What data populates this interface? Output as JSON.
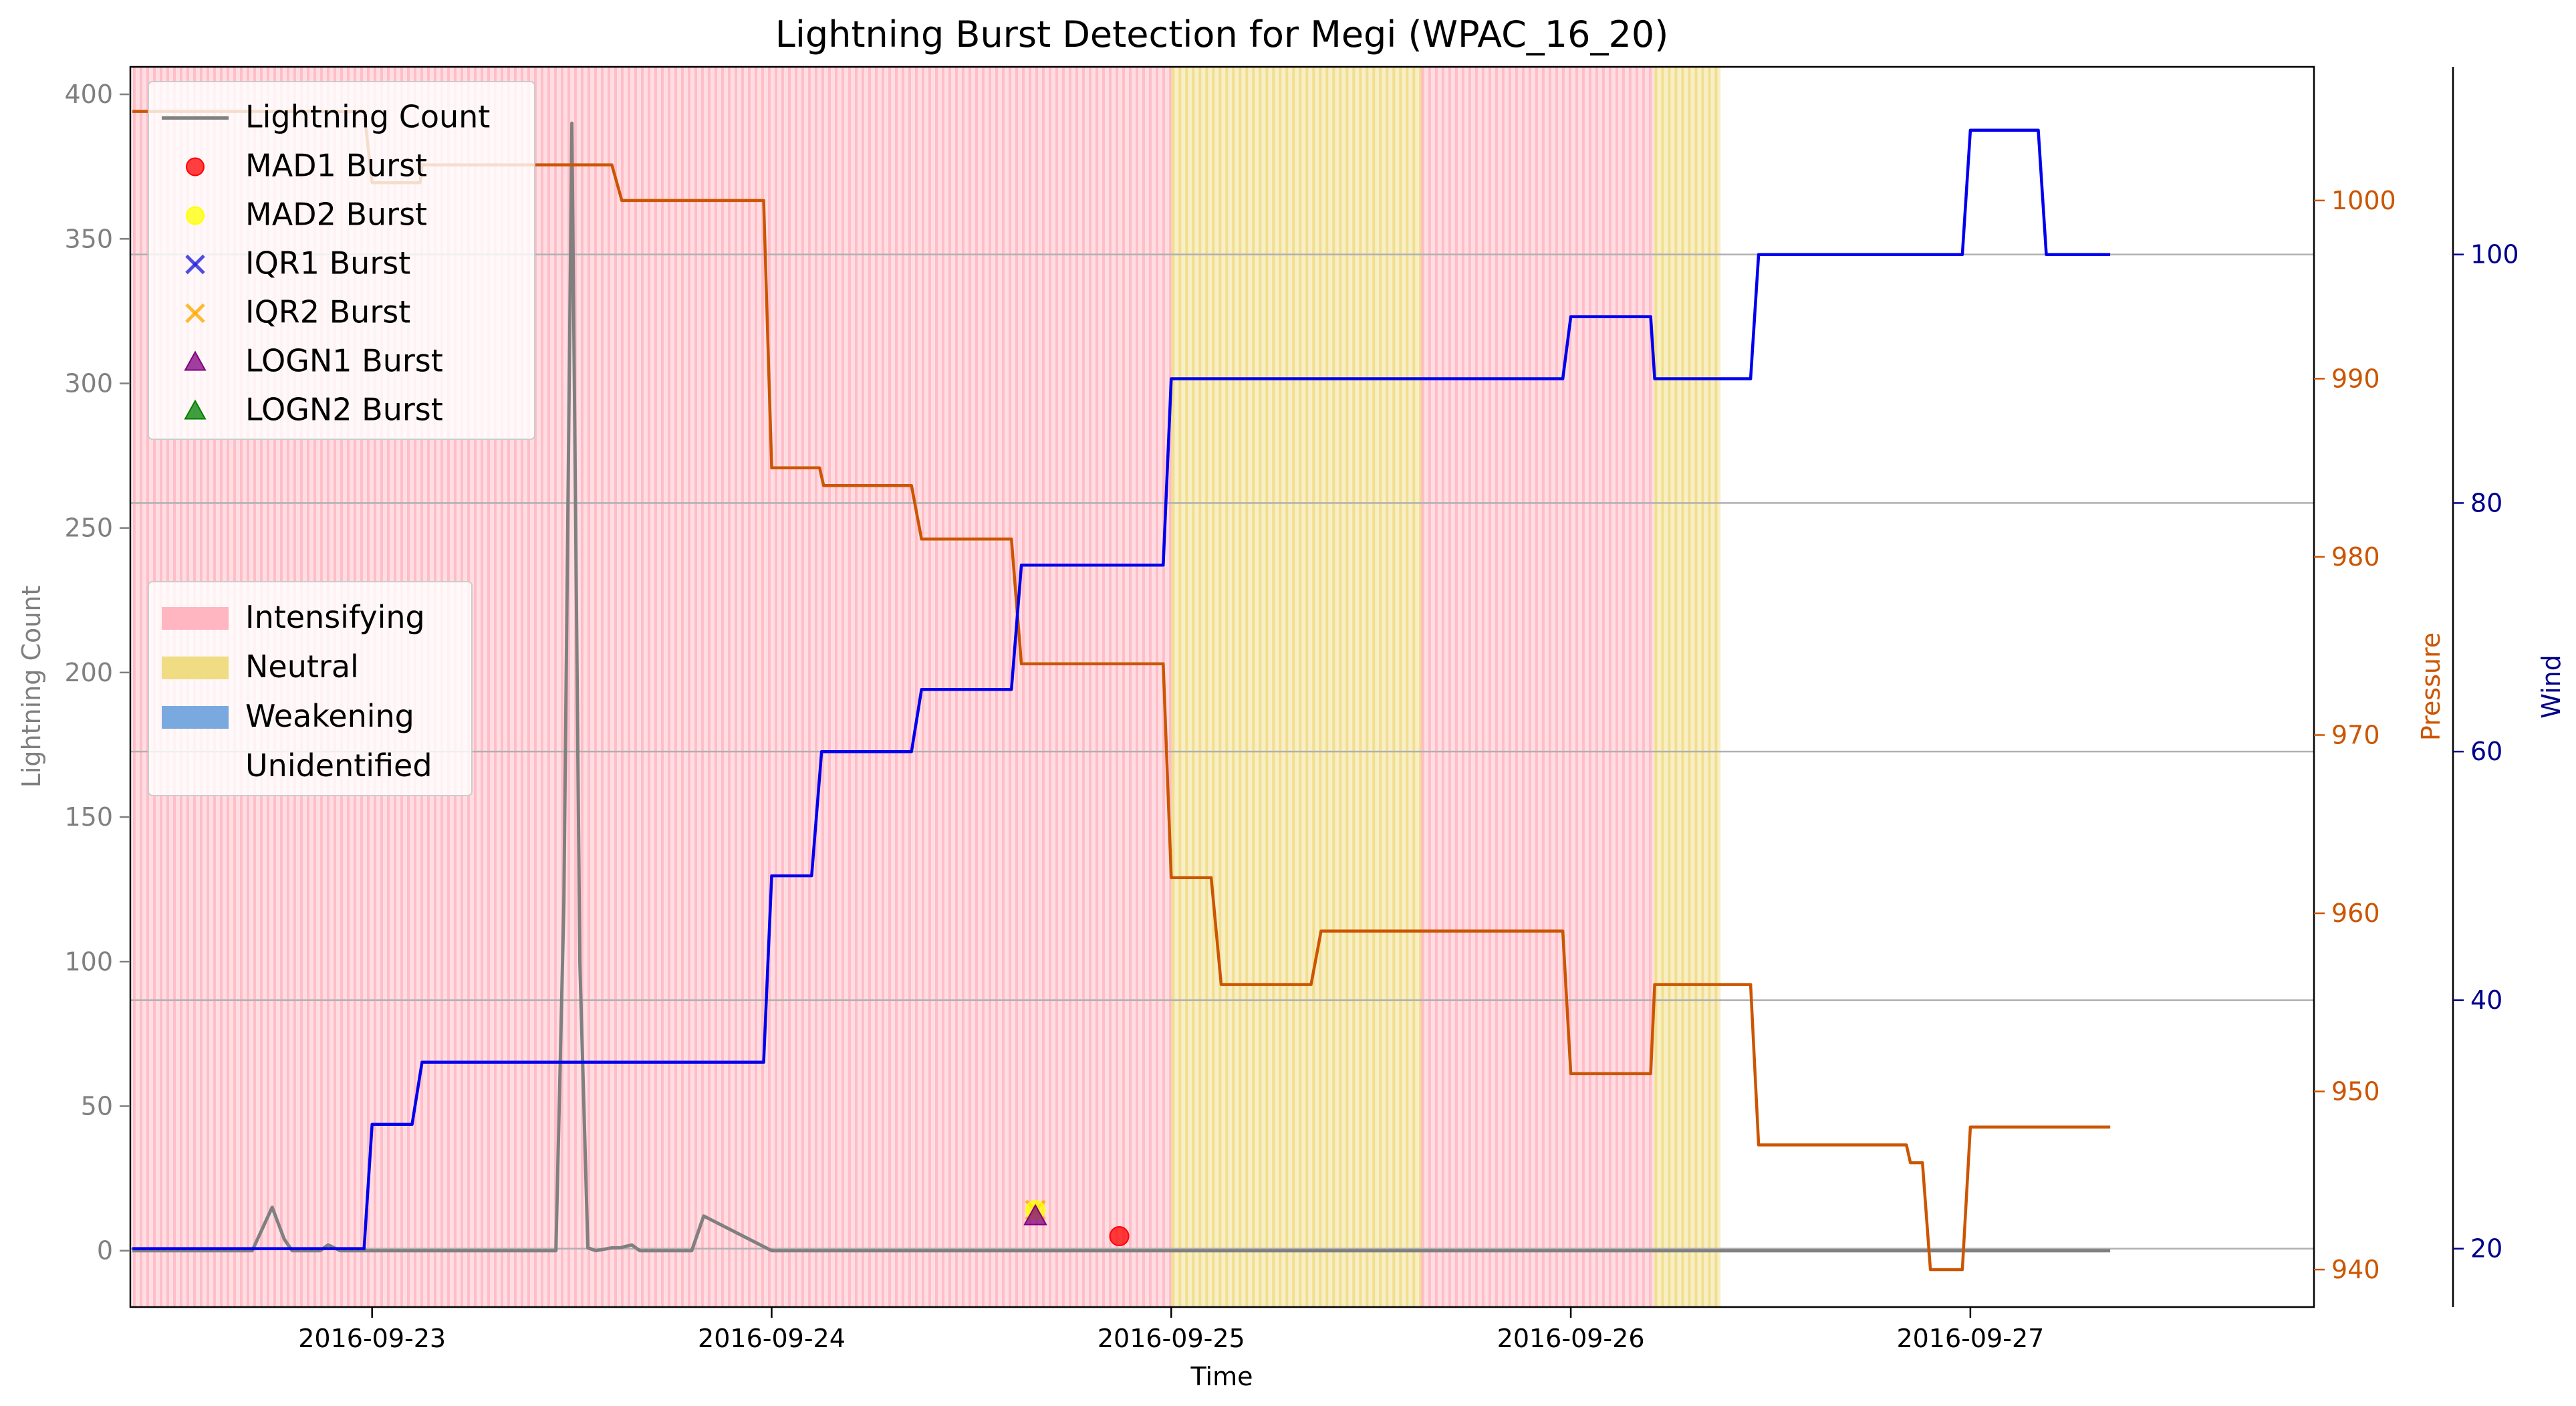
{
  "chart_data": {
    "type": "line",
    "title": "Lightning Burst Detection for Megi (WPAC_16_20)",
    "xlabel": "Time",
    "ylabel_left": "Lightning Count",
    "ylabel_pressure": "Pressure",
    "ylabel_wind": "Wind",
    "xlim": [
      -0.605,
      4.86
    ],
    "ylim_left": [
      -19.5,
      409.5
    ],
    "ylim_pressure": [
      937.9,
      1007.5
    ],
    "ylim_wind": [
      15.3,
      115.1
    ],
    "x_ticks": [
      0,
      1,
      2,
      3,
      4
    ],
    "x_tick_labels": [
      "2016-09-23",
      "2016-09-24",
      "2016-09-25",
      "2016-09-26",
      "2016-09-27"
    ],
    "left_ticks": [
      0,
      50,
      100,
      150,
      200,
      250,
      300,
      350,
      400
    ],
    "pressure_ticks": [
      940,
      950,
      960,
      970,
      980,
      990,
      1000
    ],
    "wind_ticks": [
      20,
      40,
      60,
      80,
      100
    ],
    "wind_gridlines": true,
    "colors": {
      "lightning": "#808080",
      "pressure": "#cc5500",
      "wind": "#0000ee",
      "intensifying": "#ffb6c1",
      "neutral": "#f0dc82",
      "weakening": "#7aa9df",
      "mad1": "#ff0000",
      "mad2": "#ffff00",
      "iqr1": "#2222dd",
      "iqr2": "#ffaa00",
      "logn1": "#800080",
      "logn2": "#008000",
      "grid": "#b0b0b0",
      "left_axis_text": "#808080"
    },
    "phases": [
      {
        "phase": "Intensifying",
        "x": [
          -0.6,
          2.0
        ]
      },
      {
        "phase": "Neutral",
        "x": [
          2.0,
          2.625
        ]
      },
      {
        "phase": "Intensifying",
        "x": [
          2.625,
          3.208
        ]
      },
      {
        "phase": "Neutral",
        "x": [
          3.208,
          3.375
        ]
      }
    ],
    "series": [
      {
        "name": "Lightning Count",
        "axis": "left",
        "color": "#808080",
        "x": [
          -0.6,
          -0.58,
          -0.55,
          -0.3,
          -0.25,
          -0.22,
          -0.2,
          -0.15,
          -0.13,
          -0.11,
          -0.08,
          -0.05,
          0.0,
          0.2,
          0.46,
          0.48,
          0.5,
          0.52,
          0.54,
          0.56,
          0.6,
          0.62,
          0.65,
          0.67,
          0.69,
          0.71,
          0.75,
          0.78,
          0.8,
          0.83,
          1.0,
          1.5,
          1.65,
          1.67,
          1.7,
          1.72,
          1.75,
          1.78,
          1.8,
          1.83,
          1.85,
          1.87,
          1.9,
          2.0,
          2.05,
          2.07,
          2.09,
          2.3,
          2.38,
          2.4,
          2.42,
          2.5,
          2.53,
          2.55,
          2.57,
          3.0,
          3.5,
          3.8,
          3.83,
          3.86,
          4.1,
          4.2,
          4.22,
          4.25,
          4.28,
          4.3,
          4.32,
          4.35
        ],
        "y": [
          0,
          0,
          0,
          0,
          15,
          4,
          0,
          0,
          0,
          2,
          0,
          0,
          0,
          0,
          0,
          120,
          390,
          100,
          1,
          0,
          1,
          1,
          2,
          0,
          0,
          0,
          0,
          0,
          0,
          12,
          0,
          0,
          0,
          0,
          0,
          0,
          0,
          0,
          0,
          0,
          0,
          0,
          0,
          0,
          0,
          0,
          0,
          0,
          0,
          0,
          0,
          0,
          0,
          0,
          0,
          0,
          0,
          0,
          0,
          0,
          0,
          0,
          0,
          0,
          0,
          0,
          0,
          0
        ]
      },
      {
        "name": "Pressure",
        "axis": "pressure",
        "color": "#cc5500",
        "x": [
          -0.6,
          -0.02,
          0.0,
          0.12,
          0.125,
          0.6,
          0.625,
          0.98,
          1.0,
          1.12,
          1.13,
          1.35,
          1.375,
          1.6,
          1.625,
          1.98,
          2.0,
          2.1,
          2.125,
          2.35,
          2.375,
          2.98,
          3.0,
          3.2,
          3.21,
          3.45,
          3.47,
          3.84,
          3.85,
          3.88,
          3.9,
          3.98,
          4.0,
          4.17,
          4.19,
          4.35
        ],
        "y": [
          1005,
          1005,
          1001,
          1001,
          1002,
          1002,
          1000,
          1000,
          985,
          985,
          984,
          984,
          981,
          981,
          974,
          974,
          962,
          962,
          956,
          956,
          959,
          959,
          951,
          951,
          956,
          956,
          947,
          947,
          946,
          946,
          940,
          940,
          948,
          948,
          948,
          948
        ]
      },
      {
        "name": "Wind",
        "axis": "wind",
        "color": "#0000ee",
        "x": [
          -0.6,
          -0.02,
          0.0,
          0.1,
          0.125,
          0.98,
          1.0,
          1.1,
          1.125,
          1.35,
          1.375,
          1.6,
          1.625,
          1.98,
          2.0,
          2.98,
          3.0,
          3.2,
          3.21,
          3.45,
          3.47,
          3.98,
          4.0,
          4.17,
          4.19,
          4.35
        ],
        "y": [
          20,
          20,
          30,
          30,
          35,
          35,
          50,
          50,
          60,
          60,
          65,
          65,
          75,
          75,
          90,
          90,
          95,
          95,
          90,
          90,
          100,
          100,
          110,
          110,
          100,
          100
        ]
      }
    ],
    "bursts": [
      {
        "name": "IQR2 Burst",
        "marker": "x",
        "x": 1.66,
        "y": 14
      },
      {
        "name": "MAD2 Burst",
        "marker": "circle",
        "x": 1.66,
        "y": 14
      },
      {
        "name": "LOGN1 Burst",
        "marker": "triangle",
        "x": 1.66,
        "y": 12
      },
      {
        "name": "MAD1 Burst",
        "marker": "circle",
        "x": 1.87,
        "y": 5
      }
    ],
    "legend_top": {
      "placement": "upper left",
      "items": [
        {
          "label": "Lightning Count",
          "symbol": "line",
          "color": "#808080"
        },
        {
          "label": "MAD1 Burst",
          "symbol": "circle",
          "color": "#ff0000"
        },
        {
          "label": "MAD2 Burst",
          "symbol": "circle",
          "color": "#ffff00"
        },
        {
          "label": "IQR1 Burst",
          "symbol": "x",
          "color": "#2222dd"
        },
        {
          "label": "IQR2 Burst",
          "symbol": "x",
          "color": "#ffaa00"
        },
        {
          "label": "LOGN1 Burst",
          "symbol": "triangle",
          "color": "#800080"
        },
        {
          "label": "LOGN2 Burst",
          "symbol": "triangle",
          "color": "#008000"
        }
      ]
    },
    "legend_phase": {
      "placement": "center left",
      "items": [
        {
          "label": "Intensifying",
          "symbol": "patch",
          "color": "#ffb6c1"
        },
        {
          "label": "Neutral",
          "symbol": "patch",
          "color": "#f0dc82"
        },
        {
          "label": "Weakening",
          "symbol": "patch",
          "color": "#7aa9df"
        },
        {
          "label": "Unidentified",
          "symbol": "none",
          "color": "#ffffff"
        }
      ]
    }
  }
}
